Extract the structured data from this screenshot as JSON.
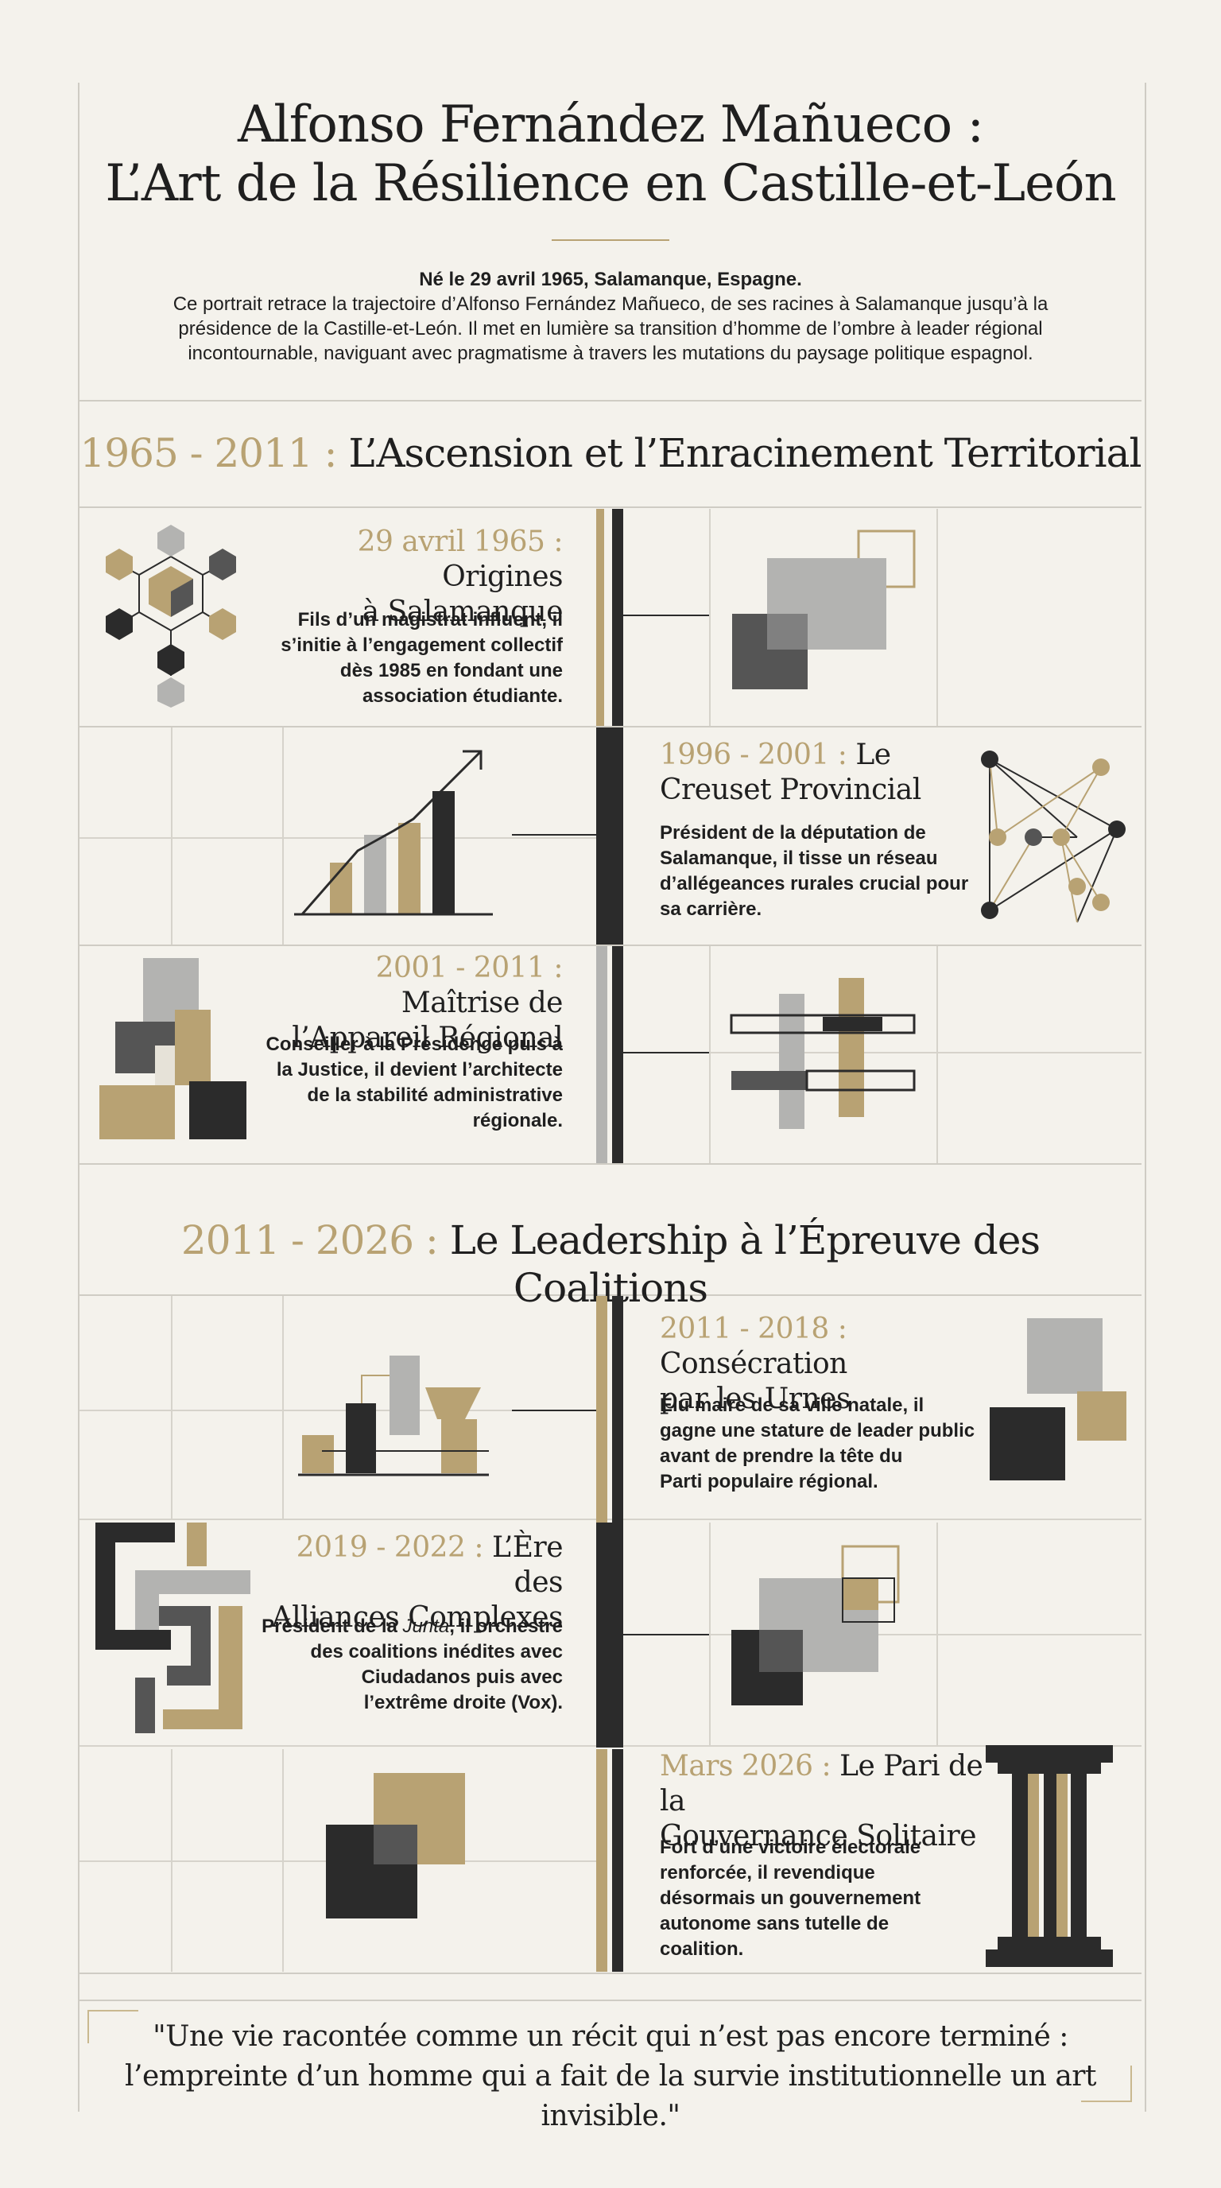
{
  "header": {
    "title_line1": "Alfonso Fernández Mañueco :",
    "title_line2": "L’Art de la Résilience en Castille-et-León",
    "birth": "Né le 29 avril 1965, Salamanque, Espagne.",
    "intro_line1": "Ce portrait retrace la trajectoire d’Alfonso Fernández Mañueco, de ses racines à Salamanque jusqu’à la",
    "intro_line2": "présidence de la Castille-et-León. Il met en lumière sa transition d’homme de l’ombre à leader régional",
    "intro_line3": "incontournable, naviguant avec pragmatisme à travers les mutations du paysage politique espagnol."
  },
  "section1": {
    "years": "1965 - 2011 :",
    "title": "L’Ascension et l’Enracinement Territorial"
  },
  "section2": {
    "years": "2011 - 2026 :",
    "title": "Le Leadership à l’Épreuve des Coalitions"
  },
  "events": [
    {
      "date": "29 avril 1965 :",
      "title1": "Origines",
      "title2": "à Salamanque",
      "text": [
        "Fils d’un magistrat influent, il",
        "s’initie à l’engagement collectif",
        "dès 1985 en fondant une",
        "association étudiante."
      ]
    },
    {
      "date": "1996 - 2001 :",
      "title1": "Le",
      "title2": "Creuset Provincial",
      "text": [
        "Président de la députation de",
        "Salamanque, il tisse un réseau",
        "d’allégeances rurales crucial pour",
        "sa carrière."
      ]
    },
    {
      "date": "2001 - 2011 :",
      "title1": "Maîtrise de",
      "title2": "l’Appareil Régional",
      "text": [
        "Conseiller à la Présidence puis à",
        "la Justice, il devient l’architecte",
        "de la stabilité administrative",
        "régionale."
      ]
    },
    {
      "date": "2011 - 2018 :",
      "title1": "Consécration",
      "title2": "par les Urnes",
      "text": [
        "Élu maire de sa ville natale, il",
        "gagne une stature de leader public",
        "avant de prendre la tête du",
        "Parti populaire régional."
      ]
    },
    {
      "date": "2019 - 2022 :",
      "title1": "L’Ère des",
      "title2": "Alliances Complexes",
      "text_pre": "Président de la ",
      "text_em": "Junta",
      "text_post": ", il orchestre",
      "text": [
        "des coalitions inédites avec",
        "Ciudadanos puis avec",
        "l’extrême droite (Vox)."
      ]
    },
    {
      "date": "Mars 2026 :",
      "title1": "Le Pari de la",
      "title2": "Gouvernance Solitaire",
      "text": [
        "Fort d’une victoire électorale",
        "renforcée, il revendique",
        "désormais un gouvernement",
        "autonome sans tutelle de",
        "coalition."
      ]
    }
  ],
  "quote": {
    "line1": "\"Une vie racontée comme un récit qui n’est pas encore terminé :",
    "line2": "l’empreinte d’un homme qui a fait de la survie institutionnelle un art invisible.\""
  },
  "colors": {
    "gold": "#b8a273",
    "dark": "#2b2b2b",
    "gray": "#b3b3b1",
    "background": "#f4f2ec"
  }
}
